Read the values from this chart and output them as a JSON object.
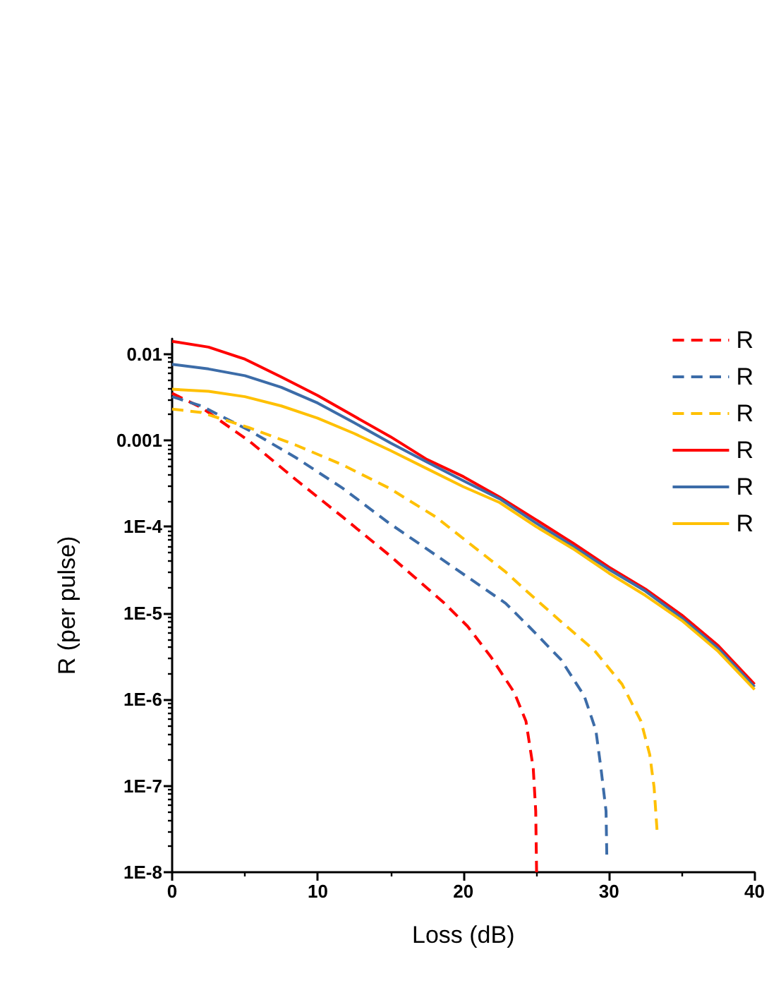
{
  "chart_data": {
    "type": "line",
    "xlabel": "Loss (dB)",
    "ylabel": "R (per pulse)",
    "xlim": [
      0,
      40
    ],
    "xticks": [
      0,
      {
        "value": 5,
        "label": null
      },
      10,
      {
        "value": 15,
        "label": null
      },
      20,
      {
        "value": 25,
        "label": null
      },
      30,
      {
        "value": 35,
        "label": null
      },
      40
    ],
    "ylim": [
      1e-08,
      0.015
    ],
    "yticks": [
      {
        "value": 1e-08,
        "label": "1E-8"
      },
      {
        "value": 2e-08,
        "label": null
      },
      {
        "value": 3e-08,
        "label": null
      },
      {
        "value": 4e-08,
        "label": null
      },
      {
        "value": 5e-08,
        "label": null
      },
      {
        "value": 6e-08,
        "label": null
      },
      {
        "value": 7e-08,
        "label": null
      },
      {
        "value": 8e-08,
        "label": null
      },
      {
        "value": 9e-08,
        "label": null
      },
      {
        "value": 1e-07,
        "label": "1E-7"
      },
      {
        "value": 2e-07,
        "label": null
      },
      {
        "value": 3e-07,
        "label": null
      },
      {
        "value": 4e-07,
        "label": null
      },
      {
        "value": 5e-07,
        "label": null
      },
      {
        "value": 6e-07,
        "label": null
      },
      {
        "value": 7e-07,
        "label": null
      },
      {
        "value": 8e-07,
        "label": null
      },
      {
        "value": 9e-07,
        "label": null
      },
      {
        "value": 1e-06,
        "label": "1E-6"
      },
      {
        "value": 2e-06,
        "label": null
      },
      {
        "value": 3e-06,
        "label": null
      },
      {
        "value": 4e-06,
        "label": null
      },
      {
        "value": 5e-06,
        "label": null
      },
      {
        "value": 6e-06,
        "label": null
      },
      {
        "value": 7e-06,
        "label": null
      },
      {
        "value": 8e-06,
        "label": null
      },
      {
        "value": 9e-06,
        "label": null
      },
      {
        "value": 1e-05,
        "label": "1E-5"
      },
      {
        "value": 2e-05,
        "label": null
      },
      {
        "value": 3e-05,
        "label": null
      },
      {
        "value": 4e-05,
        "label": null
      },
      {
        "value": 5e-05,
        "label": null
      },
      {
        "value": 6e-05,
        "label": null
      },
      {
        "value": 7e-05,
        "label": null
      },
      {
        "value": 8e-05,
        "label": null
      },
      {
        "value": 9e-05,
        "label": null
      },
      {
        "value": 0.0001,
        "label": "1E-4"
      },
      {
        "value": 0.0002,
        "label": null
      },
      {
        "value": 0.0003,
        "label": null
      },
      {
        "value": 0.0004,
        "label": null
      },
      {
        "value": 0.0005,
        "label": null
      },
      {
        "value": 0.0006,
        "label": null
      },
      {
        "value": 0.0007,
        "label": null
      },
      {
        "value": 0.0008,
        "label": null
      },
      {
        "value": 0.0009,
        "label": null
      },
      0.001,
      {
        "value": 0.002,
        "label": null
      },
      {
        "value": 0.003,
        "label": null
      },
      {
        "value": 0.004,
        "label": null
      },
      {
        "value": 0.005,
        "label": null
      },
      {
        "value": 0.006,
        "label": null
      },
      {
        "value": 0.007,
        "label": null
      },
      {
        "value": 0.008,
        "label": null
      },
      {
        "value": 0.009,
        "label": null
      },
      0.01
    ],
    "log": "y",
    "grid": false,
    "legend": "top right",
    "marker": "none",
    "series": [
      {
        "name": "R",
        "color": "#ff0000",
        "line_style": "dashed",
        "x": [
          0,
          2,
          5.3,
          8.5,
          11.7,
          14.9,
          18.7,
          20.3,
          21.9,
          23.5,
          24.3,
          24.8,
          24.97,
          25.03
        ],
        "values": [
          0.0035,
          0.0024,
          0.00098,
          0.00035,
          0.00013,
          4.7e-05,
          1.3e-05,
          7e-06,
          3.1e-06,
          1.2e-06,
          5.6e-07,
          1.6e-07,
          5.1e-08,
          1e-08
        ]
      },
      {
        "name": "R",
        "color": "#3c6ca8",
        "line_style": "dashed",
        "x": [
          0,
          2,
          5.3,
          8.5,
          11.7,
          14.9,
          18.1,
          22.9,
          24.5,
          26.7,
          28.3,
          29.1,
          29.45,
          29.8,
          29.85
        ],
        "values": [
          0.0032,
          0.0025,
          0.0013,
          0.00063,
          0.00028,
          0.00011,
          4.7e-05,
          1.3e-05,
          7e-06,
          2.9e-06,
          1.1e-06,
          4.4e-07,
          1.6e-07,
          5.1e-08,
          1.6e-08
        ]
      },
      {
        "name": "R",
        "color": "#ffc000",
        "line_style": "dashed",
        "x": [
          0,
          2,
          5.3,
          8.5,
          11.7,
          14.9,
          18.1,
          22.9,
          24.5,
          26.7,
          29,
          30.9,
          32.2,
          32.8,
          33.1,
          33.3
        ],
        "values": [
          0.0023,
          0.0021,
          0.0014,
          0.00088,
          0.00052,
          0.00028,
          0.00013,
          3e-05,
          1.7e-05,
          8e-06,
          3.7e-06,
          1.5e-06,
          5.6e-07,
          2.3e-07,
          9.6e-08,
          3.1e-08
        ]
      },
      {
        "name": "R",
        "color": "#ff0000",
        "line_style": "solid",
        "x": [
          0,
          2.5,
          5,
          7.5,
          10,
          12.5,
          15,
          17.5,
          20,
          22.5,
          25,
          27.5,
          30,
          32.5,
          35,
          37.5,
          40
        ],
        "values": [
          0.014,
          0.012,
          0.0087,
          0.0054,
          0.0033,
          0.0019,
          0.0011,
          0.0006,
          0.00038,
          0.00022,
          0.00012,
          6.5e-05,
          3.4e-05,
          1.9e-05,
          9.5e-06,
          4.2e-06,
          1.5e-06
        ]
      },
      {
        "name": "R",
        "color": "#3c6ca8",
        "line_style": "solid",
        "x": [
          0,
          2.5,
          5,
          7.5,
          10,
          12.5,
          15,
          17.5,
          20,
          22.5,
          25,
          27.5,
          30,
          32.5,
          35,
          37.5,
          40
        ],
        "values": [
          0.0076,
          0.0067,
          0.0056,
          0.0041,
          0.0027,
          0.0016,
          0.00093,
          0.00056,
          0.00034,
          0.00021,
          0.00011,
          6e-05,
          3.2e-05,
          1.8e-05,
          8.8e-06,
          3.9e-06,
          1.4e-06
        ]
      },
      {
        "name": "R",
        "color": "#ffc000",
        "line_style": "solid",
        "x": [
          0,
          2.5,
          5,
          7.5,
          10,
          12.5,
          15,
          17.5,
          20,
          22.5,
          25,
          27.5,
          30,
          32.5,
          35,
          37.5,
          40
        ],
        "values": [
          0.0039,
          0.0037,
          0.0032,
          0.0025,
          0.0018,
          0.0012,
          0.00076,
          0.00047,
          0.00029,
          0.00019,
          0.0001,
          5.6e-05,
          2.9e-05,
          1.6e-05,
          8.2e-06,
          3.6e-06,
          1.3e-06
        ]
      }
    ]
  }
}
